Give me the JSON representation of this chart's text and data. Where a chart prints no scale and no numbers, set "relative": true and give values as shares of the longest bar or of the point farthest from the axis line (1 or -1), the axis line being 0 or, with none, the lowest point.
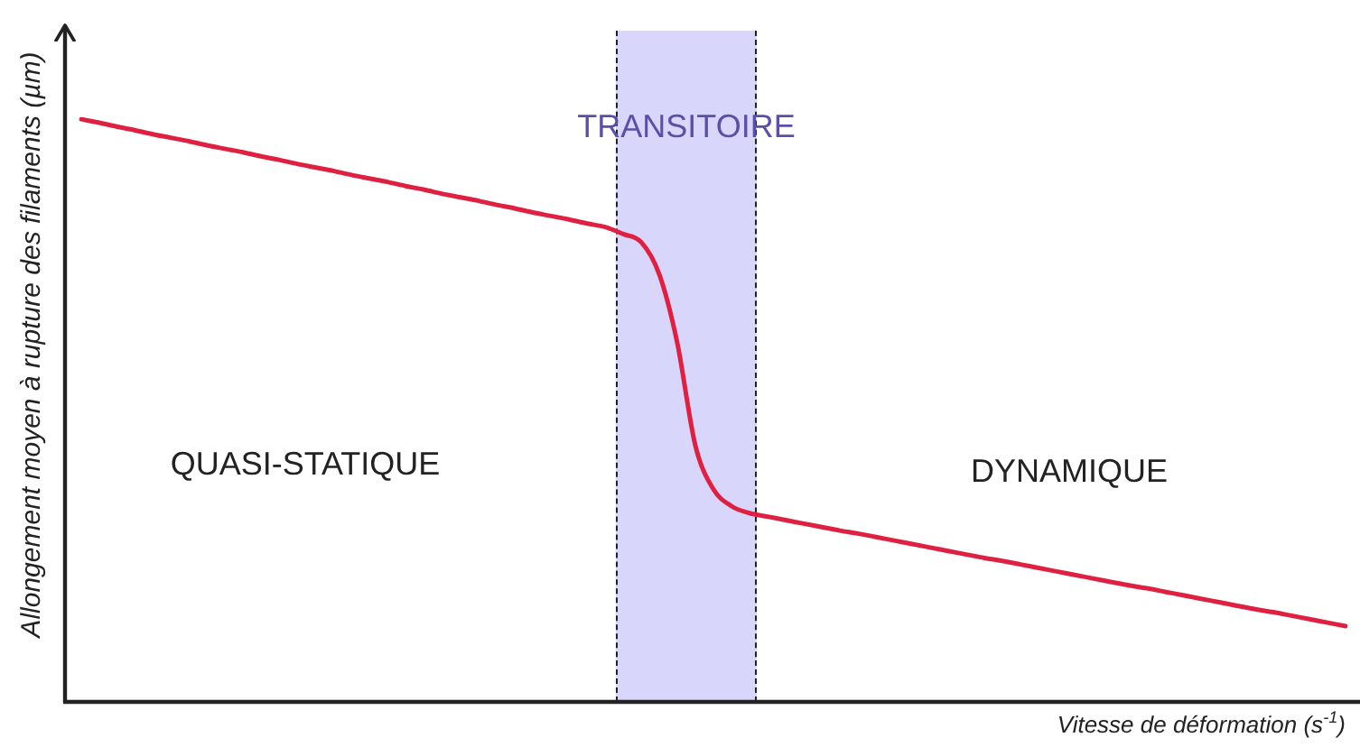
{
  "chart_data": {
    "type": "line",
    "xlabel": "Vitesse de déformation (s$^{-1}$)",
    "ylabel": "Allongement moyen à rupture des filaments (µm)",
    "categories": [
      null,
      null,
      null,
      null,
      null,
      null,
      null,
      null,
      null,
      null,
      null,
      null,
      null,
      null,
      null,
      null,
      null,
      null,
      null,
      null,
      null,
      null,
      null,
      null,
      null,
      null,
      null,
      null,
      null,
      null,
      null,
      null,
      null,
      null,
      null,
      null,
      null,
      null,
      null,
      null,
      null,
      null,
      null,
      null,
      null,
      null,
      null,
      null,
      null,
      null,
      null,
      null,
      null,
      null,
      null,
      null,
      null,
      null,
      null,
      null,
      null,
      null,
      null,
      null,
      null,
      null,
      null,
      null,
      null,
      null,
      null
    ],
    "series": [
      {
        "color": "#e02040",
        "values": [
          1.0,
          0.994,
          0.987,
          0.981,
          0.974,
          0.968,
          0.962,
          0.955,
          0.949,
          0.943,
          0.936,
          0.93,
          0.923,
          0.917,
          0.911,
          0.904,
          0.898,
          0.892,
          0.885,
          0.879,
          0.872,
          0.866,
          0.86,
          0.853,
          0.847,
          0.84,
          0.834,
          0.828,
          0.821,
          0.815,
          0.803,
          0.789,
          0.734,
          0.616,
          0.44,
          0.365,
          0.336,
          0.324,
          0.318,
          0.312,
          0.306,
          0.3,
          0.294,
          0.289,
          0.283,
          0.277,
          0.271,
          0.265,
          0.259,
          0.253,
          0.247,
          0.242,
          0.236,
          0.23,
          0.224,
          0.218,
          0.212,
          0.206,
          0.2,
          0.195,
          0.189,
          0.183,
          0.177,
          0.171,
          0.165,
          0.159,
          0.154,
          0.148,
          0.142,
          0.136,
          0.13
        ]
      }
    ],
    "relative": true,
    "annotations": [
      "TRANSITOIRE",
      "QUASI-STATIQUE",
      "DYNAMIQUE"
    ],
    "grid": false,
    "legend": false,
    "tick_labels": false,
    "marker": "none"
  }
}
